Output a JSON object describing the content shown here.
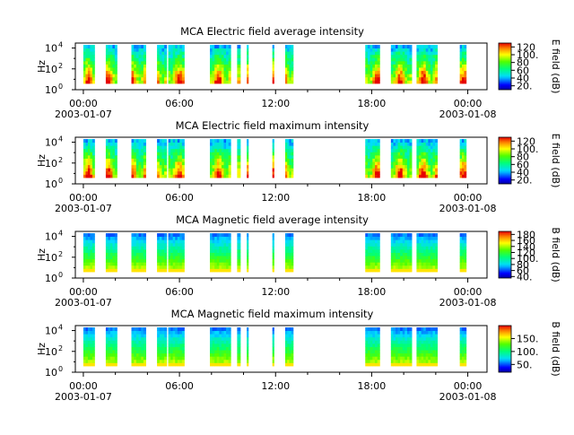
{
  "chart_data": [
    {
      "type": "heatmap",
      "title": "MCA  Electric field average intensity",
      "ylabel": "Hz",
      "colorbar_label": "E field (dB)",
      "colorbar_ticks": [
        "20.",
        "40",
        "60",
        "80",
        "100.",
        "120"
      ],
      "colorbar_range": [
        10,
        130
      ],
      "y_scale": "log",
      "y_ticks": [
        {
          "base": "10",
          "exp": "0"
        },
        {
          "base": "10",
          "exp": "2"
        },
        {
          "base": "10",
          "exp": "4"
        }
      ],
      "ylim": [
        1,
        30000
      ],
      "x_ticks": [
        {
          "time": "00:00",
          "date": "2003-01-07"
        },
        {
          "time": "06:00",
          "date": ""
        },
        {
          "time": "12:00",
          "date": ""
        },
        {
          "time": "18:00",
          "date": ""
        },
        {
          "time": "00:00",
          "date": "2003-01-08"
        }
      ],
      "x_tick_hours": [
        0,
        6,
        12,
        18,
        24
      ],
      "xlim_hours": [
        -0.5,
        25.2
      ],
      "profile": "electric",
      "data_segments_hours": [
        [
          0,
          0.7
        ],
        [
          1.4,
          2.1
        ],
        [
          3,
          3.9
        ],
        [
          4.6,
          5.2
        ],
        [
          5.3,
          6.3
        ],
        [
          7.9,
          9.2
        ],
        [
          9.6,
          9.8
        ],
        [
          10.2,
          10.3
        ],
        [
          11.8,
          11.9
        ],
        [
          12.6,
          13.1
        ],
        [
          17.6,
          18.5
        ],
        [
          19.2,
          20.5
        ],
        [
          20.8,
          22.1
        ],
        [
          23.5,
          23.9
        ]
      ],
      "freq_range_hz": [
        4,
        20000
      ]
    },
    {
      "type": "heatmap",
      "title": "MCA  Electric field maximum intensity",
      "ylabel": "Hz",
      "colorbar_label": "E field (dB)",
      "colorbar_ticks": [
        "20.",
        "40",
        "60",
        "80",
        "100.",
        "120"
      ],
      "colorbar_range": [
        10,
        130
      ],
      "y_scale": "log",
      "y_ticks": [
        {
          "base": "10",
          "exp": "0"
        },
        {
          "base": "10",
          "exp": "2"
        },
        {
          "base": "10",
          "exp": "4"
        }
      ],
      "ylim": [
        1,
        30000
      ],
      "x_ticks": [
        {
          "time": "00:00",
          "date": "2003-01-07"
        },
        {
          "time": "06:00",
          "date": ""
        },
        {
          "time": "12:00",
          "date": ""
        },
        {
          "time": "18:00",
          "date": ""
        },
        {
          "time": "00:00",
          "date": "2003-01-08"
        }
      ],
      "x_tick_hours": [
        0,
        6,
        12,
        18,
        24
      ],
      "xlim_hours": [
        -0.5,
        25.2
      ],
      "profile": "electric",
      "data_segments_hours": [
        [
          0,
          0.7
        ],
        [
          1.4,
          2.1
        ],
        [
          3,
          3.9
        ],
        [
          4.6,
          5.2
        ],
        [
          5.3,
          6.3
        ],
        [
          7.9,
          9.2
        ],
        [
          9.6,
          9.8
        ],
        [
          10.2,
          10.3
        ],
        [
          11.8,
          11.9
        ],
        [
          12.6,
          13.1
        ],
        [
          17.6,
          18.5
        ],
        [
          19.2,
          20.5
        ],
        [
          20.8,
          22.1
        ],
        [
          23.5,
          23.9
        ]
      ],
      "freq_range_hz": [
        4,
        20000
      ]
    },
    {
      "type": "heatmap",
      "title": "MCA  Magnetic field average intensity",
      "ylabel": "Hz",
      "colorbar_label": "B field (dB)",
      "colorbar_ticks": [
        "40.",
        "60",
        "80",
        "100.",
        "120",
        "140",
        "160",
        "180"
      ],
      "colorbar_range": [
        35,
        190
      ],
      "y_scale": "log",
      "y_ticks": [
        {
          "base": "10",
          "exp": "0"
        },
        {
          "base": "10",
          "exp": "2"
        },
        {
          "base": "10",
          "exp": "4"
        }
      ],
      "ylim": [
        1,
        30000
      ],
      "x_ticks": [
        {
          "time": "00:00",
          "date": "2003-01-07"
        },
        {
          "time": "06:00",
          "date": ""
        },
        {
          "time": "12:00",
          "date": ""
        },
        {
          "time": "18:00",
          "date": ""
        },
        {
          "time": "00:00",
          "date": "2003-01-08"
        }
      ],
      "x_tick_hours": [
        0,
        6,
        12,
        18,
        24
      ],
      "xlim_hours": [
        -0.5,
        25.2
      ],
      "profile": "magnetic",
      "data_segments_hours": [
        [
          0,
          0.7
        ],
        [
          1.4,
          2.1
        ],
        [
          3,
          3.9
        ],
        [
          4.6,
          5.2
        ],
        [
          5.3,
          6.3
        ],
        [
          7.9,
          9.2
        ],
        [
          9.6,
          9.8
        ],
        [
          10.2,
          10.3
        ],
        [
          11.8,
          11.9
        ],
        [
          12.6,
          13.1
        ],
        [
          17.6,
          18.5
        ],
        [
          19.2,
          20.5
        ],
        [
          20.8,
          22.1
        ],
        [
          23.5,
          23.9
        ]
      ],
      "freq_range_hz": [
        4,
        20000
      ]
    },
    {
      "type": "heatmap",
      "title": "MCA  Magnetic field maximum intensity",
      "ylabel": "Hz",
      "colorbar_label": "B field (dB)",
      "colorbar_ticks": [
        "50.",
        "100.",
        "150."
      ],
      "colorbar_range": [
        20,
        200
      ],
      "y_scale": "log",
      "y_ticks": [
        {
          "base": "10",
          "exp": "0"
        },
        {
          "base": "10",
          "exp": "2"
        },
        {
          "base": "10",
          "exp": "4"
        }
      ],
      "ylim": [
        1,
        30000
      ],
      "x_ticks": [
        {
          "time": "00:00",
          "date": "2003-01-07"
        },
        {
          "time": "06:00",
          "date": ""
        },
        {
          "time": "12:00",
          "date": ""
        },
        {
          "time": "18:00",
          "date": ""
        },
        {
          "time": "00:00",
          "date": "2003-01-08"
        }
      ],
      "x_tick_hours": [
        0,
        6,
        12,
        18,
        24
      ],
      "xlim_hours": [
        -0.5,
        25.2
      ],
      "profile": "magnetic",
      "data_segments_hours": [
        [
          0,
          0.7
        ],
        [
          1.4,
          2.1
        ],
        [
          3,
          3.9
        ],
        [
          4.6,
          5.2
        ],
        [
          5.3,
          6.3
        ],
        [
          7.9,
          9.2
        ],
        [
          9.6,
          9.8
        ],
        [
          10.2,
          10.3
        ],
        [
          11.8,
          11.9
        ],
        [
          12.6,
          13.1
        ],
        [
          17.6,
          18.5
        ],
        [
          19.2,
          20.5
        ],
        [
          20.8,
          22.1
        ],
        [
          23.5,
          23.9
        ]
      ],
      "freq_range_hz": [
        4,
        20000
      ]
    }
  ]
}
